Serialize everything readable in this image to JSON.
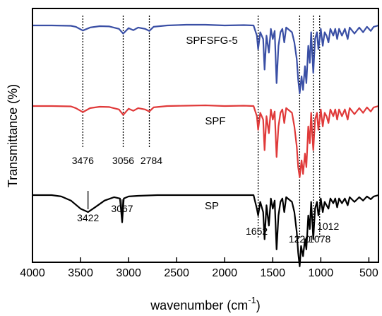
{
  "chart_data": {
    "type": "line",
    "xlabel": "wavenumber (cm",
    "xlabel_sup": "-1",
    "xlabel_close": ")",
    "ylabel": "Transmittance (%)",
    "xlim": [
      4000,
      400
    ],
    "x_reversed": true,
    "xticks": [
      4000,
      3500,
      3000,
      2500,
      2000,
      1500,
      1000,
      500
    ],
    "grid": false,
    "legend": "none",
    "series": [
      {
        "name": "SPFSFG-5",
        "color": "#3a4fa5",
        "points": [
          [
            4000,
            0.0
          ],
          [
            3800,
            0.0
          ],
          [
            3600,
            -0.05
          ],
          [
            3550,
            -0.2
          ],
          [
            3476,
            -0.75
          ],
          [
            3400,
            -0.3
          ],
          [
            3300,
            -0.1
          ],
          [
            3200,
            -0.15
          ],
          [
            3100,
            -0.5
          ],
          [
            3056,
            -1.2
          ],
          [
            3000,
            -0.4
          ],
          [
            2950,
            -0.7
          ],
          [
            2900,
            -0.3
          ],
          [
            2830,
            -0.5
          ],
          [
            2784,
            -0.8
          ],
          [
            2740,
            -0.2
          ],
          [
            2600,
            0.0
          ],
          [
            2400,
            0.1
          ],
          [
            2200,
            0.1
          ],
          [
            2000,
            0.0
          ],
          [
            1800,
            0.05
          ],
          [
            1700,
            0.0
          ],
          [
            1665,
            -1.5
          ],
          [
            1652,
            -3.5
          ],
          [
            1630,
            -1.0
          ],
          [
            1600,
            -2.0
          ],
          [
            1585,
            -6.5
          ],
          [
            1565,
            -1.5
          ],
          [
            1540,
            -4.0
          ],
          [
            1520,
            -0.5
          ],
          [
            1500,
            -2.0
          ],
          [
            1480,
            -0.8
          ],
          [
            1460,
            -8.5
          ],
          [
            1440,
            -3.0
          ],
          [
            1420,
            -1.0
          ],
          [
            1400,
            -0.5
          ],
          [
            1380,
            -2.5
          ],
          [
            1360,
            -0.3
          ],
          [
            1300,
            -1.0
          ],
          [
            1275,
            -2.5
          ],
          [
            1250,
            -5.0
          ],
          [
            1235,
            -8.0
          ],
          [
            1220,
            -10.0
          ],
          [
            1200,
            -7.5
          ],
          [
            1185,
            -9.5
          ],
          [
            1165,
            -6.0
          ],
          [
            1150,
            -8.5
          ],
          [
            1130,
            -3.0
          ],
          [
            1115,
            -5.5
          ],
          [
            1100,
            -1.0
          ],
          [
            1090,
            -4.0
          ],
          [
            1078,
            -7.0
          ],
          [
            1060,
            -2.0
          ],
          [
            1040,
            -1.0
          ],
          [
            1025,
            -3.5
          ],
          [
            1012,
            -2.0
          ],
          [
            1000,
            -0.5
          ],
          [
            980,
            -3.0
          ],
          [
            960,
            -1.0
          ],
          [
            940,
            -1.5
          ],
          [
            920,
            -2.5
          ],
          [
            900,
            -0.5
          ],
          [
            870,
            -1.5
          ],
          [
            850,
            -0.5
          ],
          [
            830,
            -2.0
          ],
          [
            810,
            -0.5
          ],
          [
            780,
            -1.5
          ],
          [
            750,
            -0.5
          ],
          [
            720,
            -2.0
          ],
          [
            700,
            -0.3
          ],
          [
            650,
            -1.2
          ],
          [
            600,
            -0.3
          ],
          [
            560,
            -1.0
          ],
          [
            520,
            -0.2
          ],
          [
            480,
            -0.8
          ],
          [
            450,
            -0.2
          ],
          [
            400,
            0.0
          ]
        ]
      },
      {
        "name": "SPF",
        "color": "#e03a3a",
        "points": [
          [
            4000,
            0.0
          ],
          [
            3800,
            0.0
          ],
          [
            3600,
            -0.05
          ],
          [
            3550,
            -0.3
          ],
          [
            3476,
            -0.9
          ],
          [
            3400,
            -0.3
          ],
          [
            3300,
            -0.1
          ],
          [
            3200,
            -0.15
          ],
          [
            3100,
            -0.5
          ],
          [
            3056,
            -1.3
          ],
          [
            3000,
            -0.4
          ],
          [
            2950,
            -0.7
          ],
          [
            2900,
            -0.3
          ],
          [
            2830,
            -0.5
          ],
          [
            2784,
            -0.8
          ],
          [
            2740,
            -0.2
          ],
          [
            2600,
            0.0
          ],
          [
            2400,
            0.05
          ],
          [
            2200,
            0.1
          ],
          [
            2000,
            0.0
          ],
          [
            1800,
            0.05
          ],
          [
            1700,
            0.0
          ],
          [
            1665,
            -1.5
          ],
          [
            1652,
            -3.5
          ],
          [
            1630,
            -1.0
          ],
          [
            1600,
            -2.0
          ],
          [
            1585,
            -6.5
          ],
          [
            1565,
            -1.5
          ],
          [
            1540,
            -4.0
          ],
          [
            1520,
            -0.5
          ],
          [
            1500,
            -2.0
          ],
          [
            1480,
            -0.8
          ],
          [
            1460,
            -7.5
          ],
          [
            1440,
            -3.0
          ],
          [
            1420,
            -1.0
          ],
          [
            1400,
            -0.5
          ],
          [
            1380,
            -2.5
          ],
          [
            1360,
            -0.3
          ],
          [
            1300,
            -1.0
          ],
          [
            1275,
            -3.0
          ],
          [
            1250,
            -6.0
          ],
          [
            1235,
            -9.0
          ],
          [
            1220,
            -10.5
          ],
          [
            1200,
            -8.0
          ],
          [
            1185,
            -10.0
          ],
          [
            1165,
            -7.0
          ],
          [
            1150,
            -9.0
          ],
          [
            1130,
            -3.0
          ],
          [
            1115,
            -5.5
          ],
          [
            1100,
            -1.0
          ],
          [
            1090,
            -4.0
          ],
          [
            1078,
            -6.5
          ],
          [
            1060,
            -2.0
          ],
          [
            1040,
            -1.0
          ],
          [
            1025,
            -3.5
          ],
          [
            1012,
            -2.0
          ],
          [
            1000,
            -0.5
          ],
          [
            980,
            -3.0
          ],
          [
            960,
            -1.0
          ],
          [
            940,
            -1.5
          ],
          [
            920,
            -2.5
          ],
          [
            900,
            -0.5
          ],
          [
            870,
            -1.5
          ],
          [
            850,
            -0.5
          ],
          [
            830,
            -2.0
          ],
          [
            810,
            -0.5
          ],
          [
            780,
            -1.5
          ],
          [
            750,
            -0.5
          ],
          [
            720,
            -2.0
          ],
          [
            700,
            -0.3
          ],
          [
            650,
            -1.2
          ],
          [
            600,
            -0.3
          ],
          [
            560,
            -1.0
          ],
          [
            520,
            -0.2
          ],
          [
            480,
            -0.8
          ],
          [
            450,
            -0.2
          ],
          [
            400,
            0.0
          ]
        ]
      },
      {
        "name": "SP",
        "color": "#000000",
        "points": [
          [
            4000,
            0.0
          ],
          [
            3800,
            0.0
          ],
          [
            3700,
            -0.2
          ],
          [
            3600,
            -0.8
          ],
          [
            3500,
            -2.0
          ],
          [
            3422,
            -2.5
          ],
          [
            3350,
            -1.8
          ],
          [
            3250,
            -0.8
          ],
          [
            3150,
            -0.3
          ],
          [
            3090,
            -0.5
          ],
          [
            3067,
            -4.0
          ],
          [
            3050,
            -0.5
          ],
          [
            3000,
            -0.2
          ],
          [
            2900,
            -0.1
          ],
          [
            2700,
            0.0
          ],
          [
            2400,
            0.0
          ],
          [
            2000,
            0.0
          ],
          [
            1800,
            0.0
          ],
          [
            1700,
            0.0
          ],
          [
            1665,
            -2.0
          ],
          [
            1652,
            -3.0
          ],
          [
            1630,
            -1.0
          ],
          [
            1600,
            -2.5
          ],
          [
            1585,
            -6.5
          ],
          [
            1565,
            -1.5
          ],
          [
            1540,
            -4.5
          ],
          [
            1520,
            -0.5
          ],
          [
            1500,
            -2.0
          ],
          [
            1480,
            -0.8
          ],
          [
            1460,
            -8.0
          ],
          [
            1440,
            -3.0
          ],
          [
            1420,
            -1.0
          ],
          [
            1400,
            -0.5
          ],
          [
            1380,
            -2.5
          ],
          [
            1360,
            -0.3
          ],
          [
            1300,
            -1.0
          ],
          [
            1275,
            -2.5
          ],
          [
            1250,
            -5.5
          ],
          [
            1235,
            -8.5
          ],
          [
            1220,
            -10.5
          ],
          [
            1205,
            -7.5
          ],
          [
            1185,
            -9.0
          ],
          [
            1165,
            -6.5
          ],
          [
            1150,
            -8.0
          ],
          [
            1130,
            -3.0
          ],
          [
            1115,
            -5.0
          ],
          [
            1100,
            -1.0
          ],
          [
            1090,
            -3.5
          ],
          [
            1078,
            -6.5
          ],
          [
            1060,
            -2.0
          ],
          [
            1040,
            -1.0
          ],
          [
            1025,
            -3.0
          ],
          [
            1012,
            -2.0
          ],
          [
            1000,
            -0.5
          ],
          [
            980,
            -2.5
          ],
          [
            960,
            -1.0
          ],
          [
            940,
            -1.5
          ],
          [
            920,
            -2.0
          ],
          [
            900,
            -0.5
          ],
          [
            870,
            -1.2
          ],
          [
            850,
            -0.5
          ],
          [
            830,
            -1.8
          ],
          [
            810,
            -0.5
          ],
          [
            780,
            -1.2
          ],
          [
            750,
            -0.5
          ],
          [
            720,
            -1.5
          ],
          [
            700,
            -0.3
          ],
          [
            650,
            -1.0
          ],
          [
            600,
            -0.3
          ],
          [
            560,
            -0.8
          ],
          [
            520,
            -0.2
          ],
          [
            480,
            -0.6
          ],
          [
            450,
            -0.2
          ],
          [
            400,
            0.0
          ]
        ]
      }
    ],
    "peak_labels": [
      {
        "text": "3476",
        "x": 3476
      },
      {
        "text": "3056",
        "x": 3056
      },
      {
        "text": "2784",
        "x": 2784
      },
      {
        "text": "3422",
        "x": 3422
      },
      {
        "text": "3067",
        "x": 3067
      },
      {
        "text": "1652",
        "x": 1652
      },
      {
        "text": "1220",
        "x": 1220
      },
      {
        "text": "1078",
        "x": 1078
      },
      {
        "text": "1012",
        "x": 1012
      }
    ],
    "guide_lines": [
      3476,
      3056,
      2784,
      1652,
      1220,
      1078,
      1012
    ]
  }
}
